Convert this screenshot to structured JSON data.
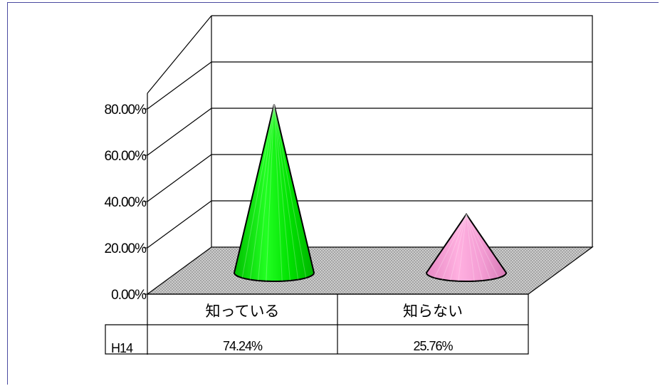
{
  "chart_data": {
    "type": "bar",
    "bar_shape": "cone",
    "categories": [
      "知っている",
      "知らない"
    ],
    "series": [
      {
        "name": "H14",
        "values": [
          74.24,
          25.76
        ],
        "labels": [
          "74.24%",
          "25.76%"
        ]
      }
    ],
    "y_ticks": [
      "0.00%",
      "20.00%",
      "40.00%",
      "60.00%",
      "80.00%"
    ],
    "ylim": [
      0,
      80
    ],
    "grid": true,
    "data_table": true,
    "colors": [
      "#00e600",
      "#f09ad0"
    ]
  }
}
